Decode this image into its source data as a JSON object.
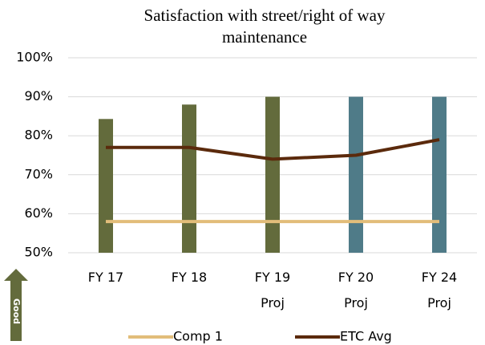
{
  "chart_data": {
    "type": "combo",
    "title": "Satisfaction with street/right of way maintenance",
    "categories": [
      "FY 17",
      "FY 18",
      "FY 19\nProj",
      "FY 20\nProj",
      "FY 24\nProj"
    ],
    "bars": {
      "values": [
        84.3,
        88,
        90,
        90,
        90
      ],
      "colors": [
        "#636b3c",
        "#636b3c",
        "#636b3c",
        "#4f7b88",
        "#4f7b88"
      ]
    },
    "series": [
      {
        "name": "Comp 1",
        "color": "#e2bd7a",
        "values": [
          58,
          58,
          58,
          58,
          58
        ]
      },
      {
        "name": "ETC Avg",
        "color": "#5b2a0c",
        "values": [
          77,
          77,
          74,
          75,
          79
        ]
      }
    ],
    "ylim": [
      50,
      100
    ],
    "yticks": [
      {
        "value": 50,
        "label": "50%"
      },
      {
        "value": 60,
        "label": "60%"
      },
      {
        "value": 70,
        "label": "70%"
      },
      {
        "value": 80,
        "label": "80%"
      },
      {
        "value": 90,
        "label": "90%"
      },
      {
        "value": 100,
        "label": "100%"
      }
    ],
    "grid": true,
    "annotation": "Good"
  }
}
